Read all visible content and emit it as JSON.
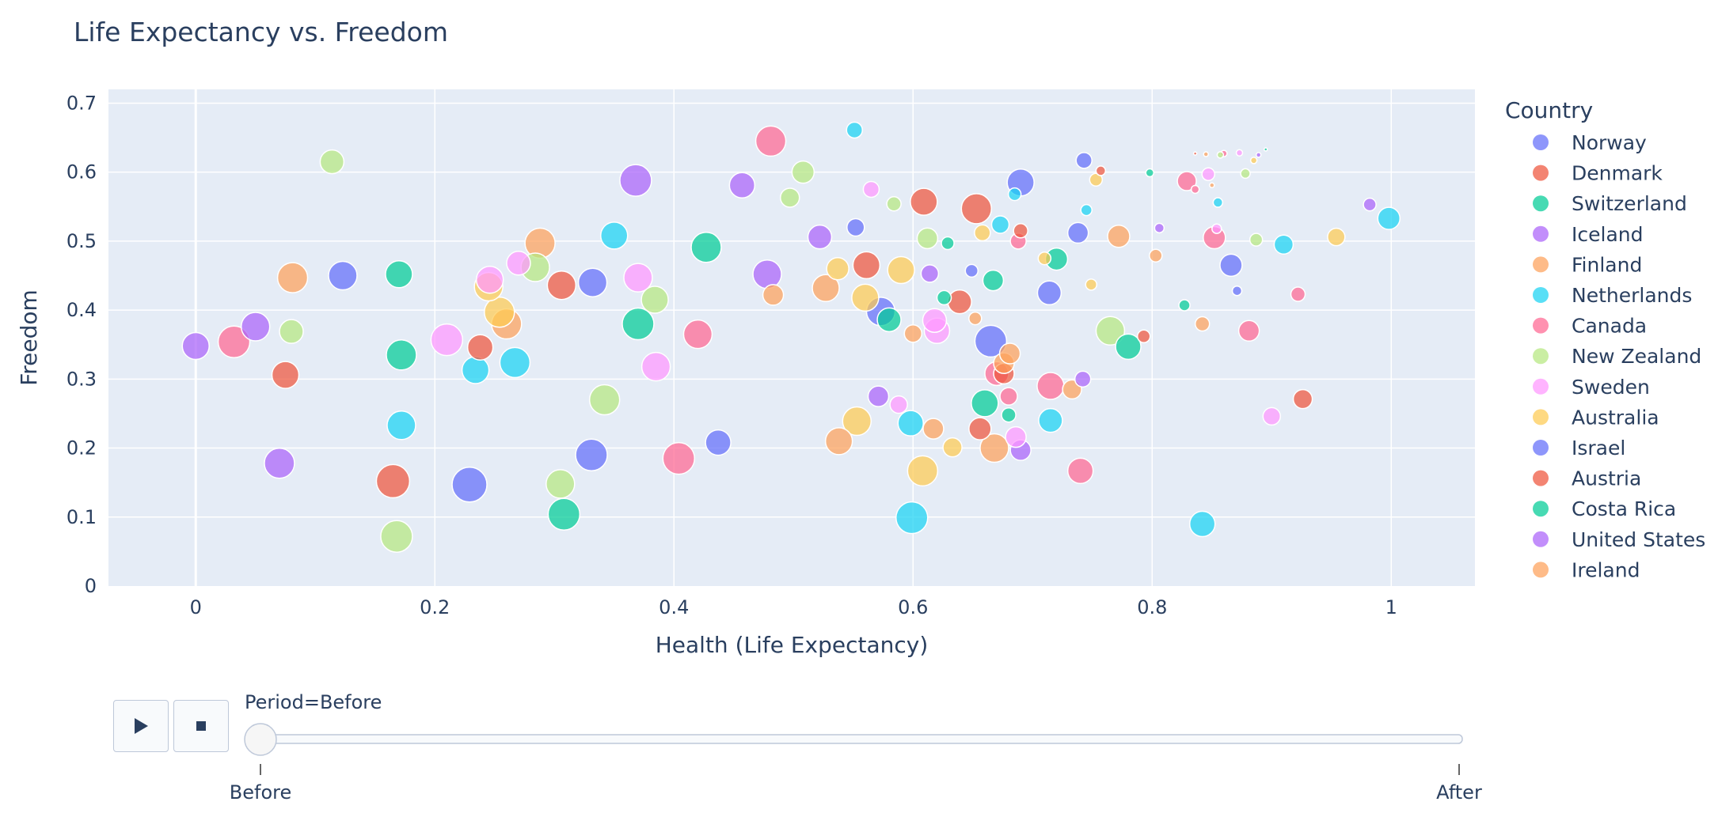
{
  "chart_data": {
    "type": "scatter",
    "title": "Life Expectancy vs. Freedom",
    "xlabel": "Health (Life Expectancy)",
    "ylabel": "Freedom",
    "xlim": [
      -0.073,
      1.07
    ],
    "ylim": [
      0,
      0.72
    ],
    "xticks": [
      0,
      0.2,
      0.4,
      0.6,
      0.8,
      1
    ],
    "xtick_labels": [
      "0",
      "0.2",
      "0.4",
      "0.6",
      "0.8",
      "1"
    ],
    "yticks": [
      0,
      0.1,
      0.2,
      0.3,
      0.4,
      0.5,
      0.6,
      0.7
    ],
    "ytick_labels": [
      "0",
      "0.1",
      "0.2",
      "0.3",
      "0.4",
      "0.5",
      "0.6",
      "0.7"
    ],
    "grid": true,
    "legend_title": "Country",
    "legend_position": "right",
    "series": [
      {
        "name": "Norway",
        "color": "#636efa",
        "points": [
          [
            0.123,
            0.45,
            18
          ],
          [
            0.229,
            0.147,
            22
          ],
          [
            0.332,
            0.44,
            18
          ],
          [
            0.331,
            0.19,
            20
          ],
          [
            0.437,
            0.208,
            16
          ],
          [
            0.552,
            0.52,
            11
          ],
          [
            0.573,
            0.398,
            18
          ],
          [
            0.649,
            0.457,
            8
          ],
          [
            0.665,
            0.355,
            20
          ],
          [
            0.69,
            0.585,
            17
          ],
          [
            0.714,
            0.425,
            15
          ],
          [
            0.738,
            0.512,
            13
          ],
          [
            0.743,
            0.617,
            10
          ],
          [
            0.866,
            0.465,
            14
          ],
          [
            0.871,
            0.428,
            6
          ]
        ]
      },
      {
        "name": "Denmark",
        "color": "#ef553b",
        "points": [
          [
            0.075,
            0.306,
            17
          ],
          [
            0.165,
            0.152,
            21
          ],
          [
            0.238,
            0.346,
            16
          ],
          [
            0.306,
            0.436,
            18
          ],
          [
            0.561,
            0.465,
            17
          ],
          [
            0.609,
            0.557,
            17
          ],
          [
            0.639,
            0.412,
            15
          ],
          [
            0.653,
            0.547,
            19
          ],
          [
            0.656,
            0.228,
            14
          ],
          [
            0.676,
            0.308,
            13
          ],
          [
            0.69,
            0.515,
            9
          ],
          [
            0.757,
            0.602,
            6
          ],
          [
            0.793,
            0.362,
            8
          ],
          [
            0.926,
            0.271,
            12
          ],
          [
            0.836,
            0.627,
            2
          ]
        ]
      },
      {
        "name": "Switzerland",
        "color": "#00cc96",
        "points": [
          [
            0.17,
            0.452,
            17
          ],
          [
            0.172,
            0.335,
            19
          ],
          [
            0.308,
            0.104,
            20
          ],
          [
            0.37,
            0.38,
            20
          ],
          [
            0.427,
            0.491,
            19
          ],
          [
            0.58,
            0.386,
            15
          ],
          [
            0.626,
            0.418,
            9
          ],
          [
            0.629,
            0.497,
            8
          ],
          [
            0.66,
            0.265,
            17
          ],
          [
            0.667,
            0.443,
            13
          ],
          [
            0.68,
            0.248,
            9
          ],
          [
            0.72,
            0.474,
            14
          ],
          [
            0.78,
            0.347,
            16
          ],
          [
            0.798,
            0.599,
            5
          ],
          [
            0.827,
            0.407,
            7
          ],
          [
            0.895,
            0.633,
            2
          ]
        ]
      },
      {
        "name": "Iceland",
        "color": "#ab63fa",
        "points": [
          [
            0.0,
            0.348,
            17
          ],
          [
            0.05,
            0.376,
            18
          ],
          [
            0.07,
            0.178,
            19
          ],
          [
            0.368,
            0.588,
            20
          ],
          [
            0.457,
            0.581,
            16
          ],
          [
            0.478,
            0.452,
            18
          ],
          [
            0.522,
            0.506,
            15
          ],
          [
            0.571,
            0.275,
            13
          ],
          [
            0.614,
            0.453,
            11
          ],
          [
            0.69,
            0.197,
            13
          ],
          [
            0.742,
            0.3,
            10
          ],
          [
            0.806,
            0.519,
            6
          ],
          [
            0.889,
            0.625,
            3
          ],
          [
            0.982,
            0.553,
            8
          ]
        ]
      },
      {
        "name": "Finland",
        "color": "#fea15a",
        "points": [
          [
            0.081,
            0.447,
            19
          ],
          [
            0.26,
            0.38,
            19
          ],
          [
            0.288,
            0.497,
            19
          ],
          [
            0.483,
            0.422,
            13
          ],
          [
            0.527,
            0.432,
            17
          ],
          [
            0.6,
            0.366,
            11
          ],
          [
            0.652,
            0.388,
            8
          ],
          [
            0.676,
            0.323,
            13
          ],
          [
            0.681,
            0.337,
            13
          ],
          [
            0.733,
            0.285,
            12
          ],
          [
            0.772,
            0.507,
            14
          ],
          [
            0.803,
            0.479,
            8
          ],
          [
            0.842,
            0.38,
            9
          ],
          [
            0.85,
            0.581,
            3
          ],
          [
            0.845,
            0.626,
            3
          ]
        ]
      },
      {
        "name": "Netherlands",
        "color": "#19d3f3",
        "points": [
          [
            0.172,
            0.233,
            18
          ],
          [
            0.234,
            0.313,
            17
          ],
          [
            0.267,
            0.324,
            19
          ],
          [
            0.35,
            0.508,
            17
          ],
          [
            0.551,
            0.661,
            10
          ],
          [
            0.598,
            0.236,
            16
          ],
          [
            0.599,
            0.099,
            20
          ],
          [
            0.673,
            0.524,
            11
          ],
          [
            0.685,
            0.568,
            8
          ],
          [
            0.715,
            0.24,
            15
          ],
          [
            0.745,
            0.545,
            7
          ],
          [
            0.855,
            0.556,
            6
          ],
          [
            0.91,
            0.495,
            12
          ],
          [
            0.998,
            0.533,
            14
          ],
          [
            0.842,
            0.09,
            16
          ]
        ]
      },
      {
        "name": "Canada",
        "color": "#ff6692",
        "points": [
          [
            0.032,
            0.354,
            20
          ],
          [
            0.42,
            0.365,
            18
          ],
          [
            0.404,
            0.185,
            20
          ],
          [
            0.481,
            0.645,
            19
          ],
          [
            0.67,
            0.308,
            15
          ],
          [
            0.68,
            0.275,
            11
          ],
          [
            0.688,
            0.5,
            10
          ],
          [
            0.715,
            0.29,
            17
          ],
          [
            0.74,
            0.167,
            16
          ],
          [
            0.829,
            0.587,
            12
          ],
          [
            0.836,
            0.575,
            5
          ],
          [
            0.852,
            0.505,
            14
          ],
          [
            0.881,
            0.37,
            13
          ],
          [
            0.922,
            0.423,
            9
          ],
          [
            0.86,
            0.627,
            4
          ]
        ]
      },
      {
        "name": "New Zealand",
        "color": "#b6e880",
        "points": [
          [
            0.114,
            0.615,
            15
          ],
          [
            0.08,
            0.369,
            15
          ],
          [
            0.168,
            0.072,
            20
          ],
          [
            0.284,
            0.462,
            18
          ],
          [
            0.305,
            0.148,
            18
          ],
          [
            0.342,
            0.27,
            19
          ],
          [
            0.384,
            0.415,
            17
          ],
          [
            0.497,
            0.563,
            12
          ],
          [
            0.508,
            0.6,
            14
          ],
          [
            0.584,
            0.554,
            9
          ],
          [
            0.612,
            0.504,
            13
          ],
          [
            0.765,
            0.37,
            18
          ],
          [
            0.878,
            0.598,
            6
          ],
          [
            0.887,
            0.502,
            8
          ],
          [
            0.857,
            0.625,
            4
          ]
        ]
      },
      {
        "name": "Sweden",
        "color": "#ff97ff",
        "points": [
          [
            0.21,
            0.357,
            20
          ],
          [
            0.246,
            0.444,
            17
          ],
          [
            0.27,
            0.468,
            15
          ],
          [
            0.37,
            0.447,
            18
          ],
          [
            0.385,
            0.318,
            18
          ],
          [
            0.565,
            0.575,
            10
          ],
          [
            0.588,
            0.263,
            11
          ],
          [
            0.618,
            0.385,
            15
          ],
          [
            0.62,
            0.37,
            16
          ],
          [
            0.686,
            0.216,
            13
          ],
          [
            0.847,
            0.597,
            8
          ],
          [
            0.854,
            0.518,
            6
          ],
          [
            0.9,
            0.246,
            11
          ],
          [
            0.873,
            0.628,
            4
          ]
        ]
      },
      {
        "name": "Australia",
        "color": "#fecb52",
        "points": [
          [
            0.245,
            0.434,
            18
          ],
          [
            0.254,
            0.397,
            19
          ],
          [
            0.537,
            0.46,
            14
          ],
          [
            0.553,
            0.239,
            18
          ],
          [
            0.56,
            0.418,
            17
          ],
          [
            0.59,
            0.458,
            17
          ],
          [
            0.608,
            0.167,
            19
          ],
          [
            0.633,
            0.201,
            12
          ],
          [
            0.658,
            0.512,
            10
          ],
          [
            0.71,
            0.475,
            8
          ],
          [
            0.753,
            0.589,
            8
          ],
          [
            0.749,
            0.437,
            7
          ],
          [
            0.954,
            0.506,
            11
          ],
          [
            0.885,
            0.617,
            4
          ]
        ]
      },
      {
        "name": "Israel",
        "color": "#636efa",
        "points": []
      },
      {
        "name": "Austria",
        "color": "#ef553b",
        "points": []
      },
      {
        "name": "Costa Rica",
        "color": "#00cc96",
        "points": []
      },
      {
        "name": "United States",
        "color": "#ab63fa",
        "points": []
      },
      {
        "name": "Ireland",
        "color": "#fea15a",
        "points": [
          [
            0.538,
            0.21,
            17
          ],
          [
            0.668,
            0.2,
            18
          ],
          [
            0.617,
            0.228,
            13
          ]
        ]
      }
    ]
  },
  "animation": {
    "current_label": "Period=Before",
    "steps": [
      "Before",
      "After"
    ]
  },
  "controls": {
    "play_icon": "play-icon",
    "stop_icon": "stop-icon"
  }
}
